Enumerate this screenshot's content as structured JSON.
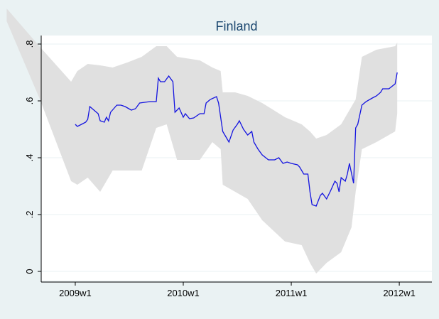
{
  "chart_data": {
    "type": "line",
    "title": "Finland",
    "x": [
      0,
      1,
      3,
      5,
      6,
      7,
      9,
      11,
      12,
      14,
      15,
      16,
      17,
      20,
      22,
      24,
      27,
      29,
      31,
      36,
      39,
      40,
      41,
      43,
      45,
      47,
      48,
      50,
      52,
      53,
      55,
      57,
      60,
      62,
      63,
      65,
      68,
      69,
      71,
      73,
      74,
      76,
      78,
      79,
      81,
      83,
      85,
      86,
      88,
      90,
      93,
      96,
      98,
      100,
      102,
      104,
      107,
      108,
      110,
      112,
      113,
      114,
      116,
      118,
      119,
      121,
      123,
      125,
      126,
      127,
      128,
      130,
      131,
      132,
      134,
      135,
      136,
      138,
      140,
      143,
      145,
      147,
      148,
      151,
      154,
      155
    ],
    "series": [
      {
        "color": "#1414e0",
        "values": [
          0.5175,
          0.51,
          0.5175,
          0.525,
          0.535,
          0.58,
          0.5675,
          0.555,
          0.53,
          0.525,
          0.5425,
          0.53,
          0.56,
          0.585,
          0.585,
          0.58,
          0.5675,
          0.5725,
          0.5925,
          0.5975,
          0.5975,
          0.68,
          0.6675,
          0.6675,
          0.6875,
          0.6675,
          0.56,
          0.575,
          0.5425,
          0.555,
          0.5375,
          0.54,
          0.555,
          0.555,
          0.5925,
          0.605,
          0.615,
          0.5925,
          0.4925,
          0.4675,
          0.455,
          0.4975,
          0.5175,
          0.53,
          0.5,
          0.48,
          0.4925,
          0.455,
          0.43,
          0.41,
          0.3925,
          0.3925,
          0.4,
          0.38,
          0.385,
          0.38,
          0.375,
          0.3675,
          0.3425,
          0.3425,
          0.28,
          0.235,
          0.23,
          0.2675,
          0.275,
          0.255,
          0.285,
          0.3175,
          0.31,
          0.28,
          0.33,
          0.3175,
          0.3425,
          0.38,
          0.31,
          0.505,
          0.5175,
          0.585,
          0.5975,
          0.61,
          0.6175,
          0.63,
          0.6425,
          0.6425,
          0.66,
          0.7
        ]
      }
    ],
    "band": {
      "color": "#e0e0e0",
      "x": [
        -33,
        -17,
        -2,
        1,
        6,
        12,
        18,
        25,
        32,
        39,
        44,
        49,
        60,
        66,
        70,
        71,
        77,
        83,
        90,
        101,
        109,
        113,
        116,
        121,
        128,
        133,
        135,
        138,
        145,
        154,
        155
      ],
      "upper": [
        0.925,
        0.79,
        0.6675,
        0.705,
        0.73,
        0.725,
        0.7175,
        0.735,
        0.755,
        0.7925,
        0.7925,
        0.755,
        0.7425,
        0.7175,
        0.705,
        0.63,
        0.63,
        0.6175,
        0.5925,
        0.5425,
        0.5175,
        0.4925,
        0.4675,
        0.48,
        0.5175,
        0.58,
        0.605,
        0.755,
        0.78,
        0.7925,
        0.805
      ],
      "lower": [
        0.88,
        0.605,
        0.3175,
        0.305,
        0.33,
        0.28,
        0.355,
        0.355,
        0.355,
        0.505,
        0.5175,
        0.3925,
        0.3925,
        0.455,
        0.43,
        0.305,
        0.28,
        0.255,
        0.18,
        0.105,
        0.0925,
        0.03,
        -0.0075,
        0.03,
        0.0675,
        0.155,
        0.28,
        0.43,
        0.455,
        0.4925,
        0.555
      ]
    },
    "xlim": [
      -16.4,
      171.7
    ],
    "xticks": [
      {
        "value": 0,
        "label": "2009w1"
      },
      {
        "value": 52,
        "label": "2010w1"
      },
      {
        "value": 104,
        "label": "2011w1"
      },
      {
        "value": 156,
        "label": "2012w1"
      }
    ],
    "ylim": [
      -0.0325,
      0.83
    ],
    "yticks": [
      0,
      {
        "value": 0.2,
        "label": ".2"
      },
      {
        "value": 0.4,
        "label": ".4"
      },
      {
        "value": 0.6,
        "label": ".6"
      },
      {
        "value": 0.8,
        "label": ".8"
      }
    ],
    "grid": true
  }
}
